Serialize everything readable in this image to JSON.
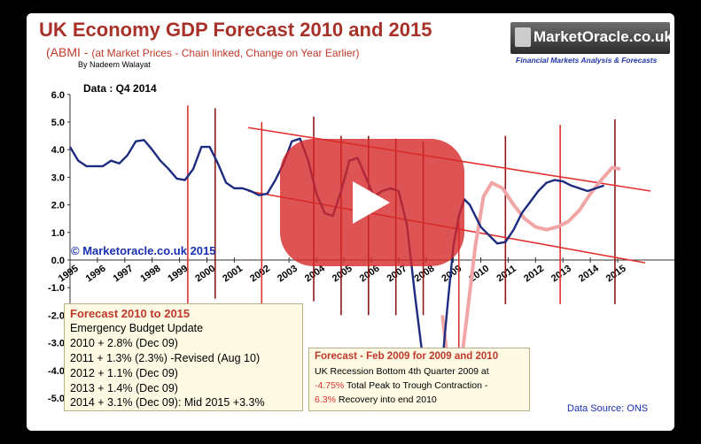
{
  "title": "UK Economy GDP Forecast 2010 and 2015",
  "subtitle_prefix": "(ABMI - ",
  "subtitle_rest": "(at Market Prices - Chain linked, Change on Year Earlier)",
  "byline": "By Nadeem Walayat",
  "data_label": "Data : Q4 2014",
  "copyright": "© Marketoracle.co.uk 2015",
  "source": "Data Source: ONS",
  "logo": {
    "name": "MarketOracle.co.uk",
    "tagline": "Financial Markets Analysis & Forecasts"
  },
  "forecast_box": {
    "heading": "Forecast 2010 to 2015",
    "lines": [
      "Emergency Budget Update",
      "2010 + 2.8% (Dec 09)",
      "2011 + 1.3% (2.3%) -Revised (Aug 10)",
      "2012 + 1.1% (Dec 09)",
      "2013 + 1.4% (Dec 09)",
      "2014 + 3.1% (Dec 09): Mid 2015 +3.3%"
    ]
  },
  "forecast2009_box": {
    "heading": "Forecast - Feb  2009 for 2009 and 2010",
    "line1": "UK Recession Bottom  4th Quarter 2009 at",
    "line2_red": "-4.75%",
    "line2_rest": "  Total Peak to Trough Contraction -",
    "line3_red": "6.3%",
    "line3_rest": "  Recovery into end 2010"
  },
  "chart_data": {
    "type": "line",
    "title": "UK Economy GDP Forecast 2010 and 2015",
    "ylim": [
      -5.0,
      6.0
    ],
    "xlim": [
      1995,
      2016
    ],
    "y_ticks": [
      "6.0",
      "5.0",
      "4.0",
      "3.0",
      "2.0",
      "1.0",
      "0.0",
      "-1.0",
      "-2.0",
      "-3.0",
      "-4.0",
      "-5.0"
    ],
    "x_ticks": [
      "1995",
      "1996",
      "1997",
      "1998",
      "1999",
      "2000",
      "2001",
      "2002",
      "2003",
      "2004",
      "2005",
      "2006",
      "2007",
      "2008",
      "2009",
      "2010",
      "2011",
      "2012",
      "2013",
      "2014",
      "2015"
    ],
    "grid": false,
    "series": [
      {
        "color": "#1d2b80",
        "x": [
          1995.0,
          1995.3,
          1995.6,
          1995.9,
          1996.2,
          1996.5,
          1996.8,
          1997.1,
          1997.4,
          1997.7,
          1998.0,
          1998.3,
          1998.6,
          1998.9,
          1999.2,
          1999.5,
          1999.8,
          2000.1,
          2000.4,
          2000.7,
          2001.0,
          2001.3,
          2001.6,
          2001.9,
          2002.2,
          2002.5,
          2002.8,
          2003.1,
          2003.4,
          2003.7,
          2004.0,
          2004.3,
          2004.6,
          2004.9,
          2005.2,
          2005.5,
          2005.8,
          2006.1,
          2006.4,
          2006.7,
          2007.0,
          2007.3,
          2007.6,
          2007.9,
          2008.2,
          2008.5,
          2008.8,
          2009.0,
          2009.2,
          2009.4,
          2009.6,
          2009.8,
          2010.0,
          2010.3,
          2010.6,
          2010.9,
          2011.2,
          2011.5,
          2011.8,
          2012.1,
          2012.4,
          2012.7,
          2013.0,
          2013.3,
          2013.6,
          2013.9,
          2014.2,
          2014.5
        ],
        "values": [
          4.1,
          3.6,
          3.4,
          3.4,
          3.4,
          3.6,
          3.5,
          3.8,
          4.3,
          4.35,
          4.0,
          3.6,
          3.3,
          2.95,
          2.9,
          3.3,
          4.1,
          4.1,
          3.5,
          2.8,
          2.6,
          2.6,
          2.5,
          2.35,
          2.4,
          2.9,
          3.5,
          4.3,
          4.4,
          3.6,
          2.4,
          1.7,
          1.6,
          2.5,
          3.6,
          3.7,
          3.0,
          2.3,
          2.5,
          2.6,
          2.5,
          1.3,
          -1.3,
          -3.7,
          -4.8,
          -4.75,
          -1.5,
          0.5,
          1.6,
          2.2,
          2.0,
          1.6,
          1.2,
          0.9,
          0.6,
          0.65,
          1.1,
          1.7,
          2.1,
          2.5,
          2.8,
          2.9,
          2.85,
          2.7,
          2.6,
          2.5,
          2.6,
          2.7
        ]
      }
    ]
  }
}
